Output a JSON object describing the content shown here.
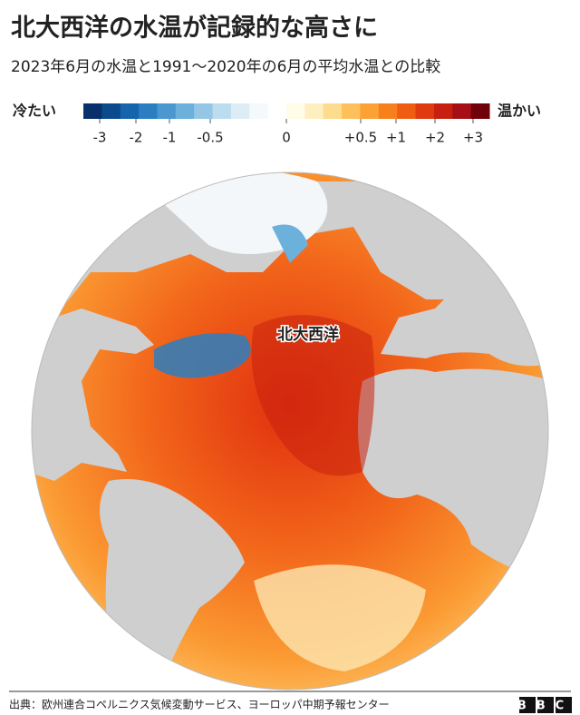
{
  "header": {
    "title": "北大西洋の水温が記録的な高さに",
    "subtitle": "2023年6月の水温と1991～2020年の6月の平均水温との比較"
  },
  "legend": {
    "cold_label": "冷たい",
    "warm_label": "温かい",
    "colors": [
      "#08306b",
      "#0b4a8c",
      "#1664ab",
      "#2b7fc0",
      "#4a98cf",
      "#6cb0dc",
      "#94c7e6",
      "#bcdcef",
      "#ddedf6",
      "#f4f9fc",
      "#ffffff",
      "#fffce8",
      "#fdefc0",
      "#fddc8e",
      "#fdc05b",
      "#fca134",
      "#f8801c",
      "#ef5d12",
      "#df3a10",
      "#c8200f",
      "#a50f15",
      "#700009"
    ],
    "ticks": [
      "-3",
      "-2",
      "-1",
      "-0.5",
      "0",
      "+0.5",
      "+1",
      "+2",
      "+3"
    ]
  },
  "map": {
    "label": "北大西洋"
  },
  "footer": {
    "source": "出典：欧州連合コペルニクス気候変動サービス、ヨーロッパ中期予報センター",
    "logo": "BBC"
  }
}
